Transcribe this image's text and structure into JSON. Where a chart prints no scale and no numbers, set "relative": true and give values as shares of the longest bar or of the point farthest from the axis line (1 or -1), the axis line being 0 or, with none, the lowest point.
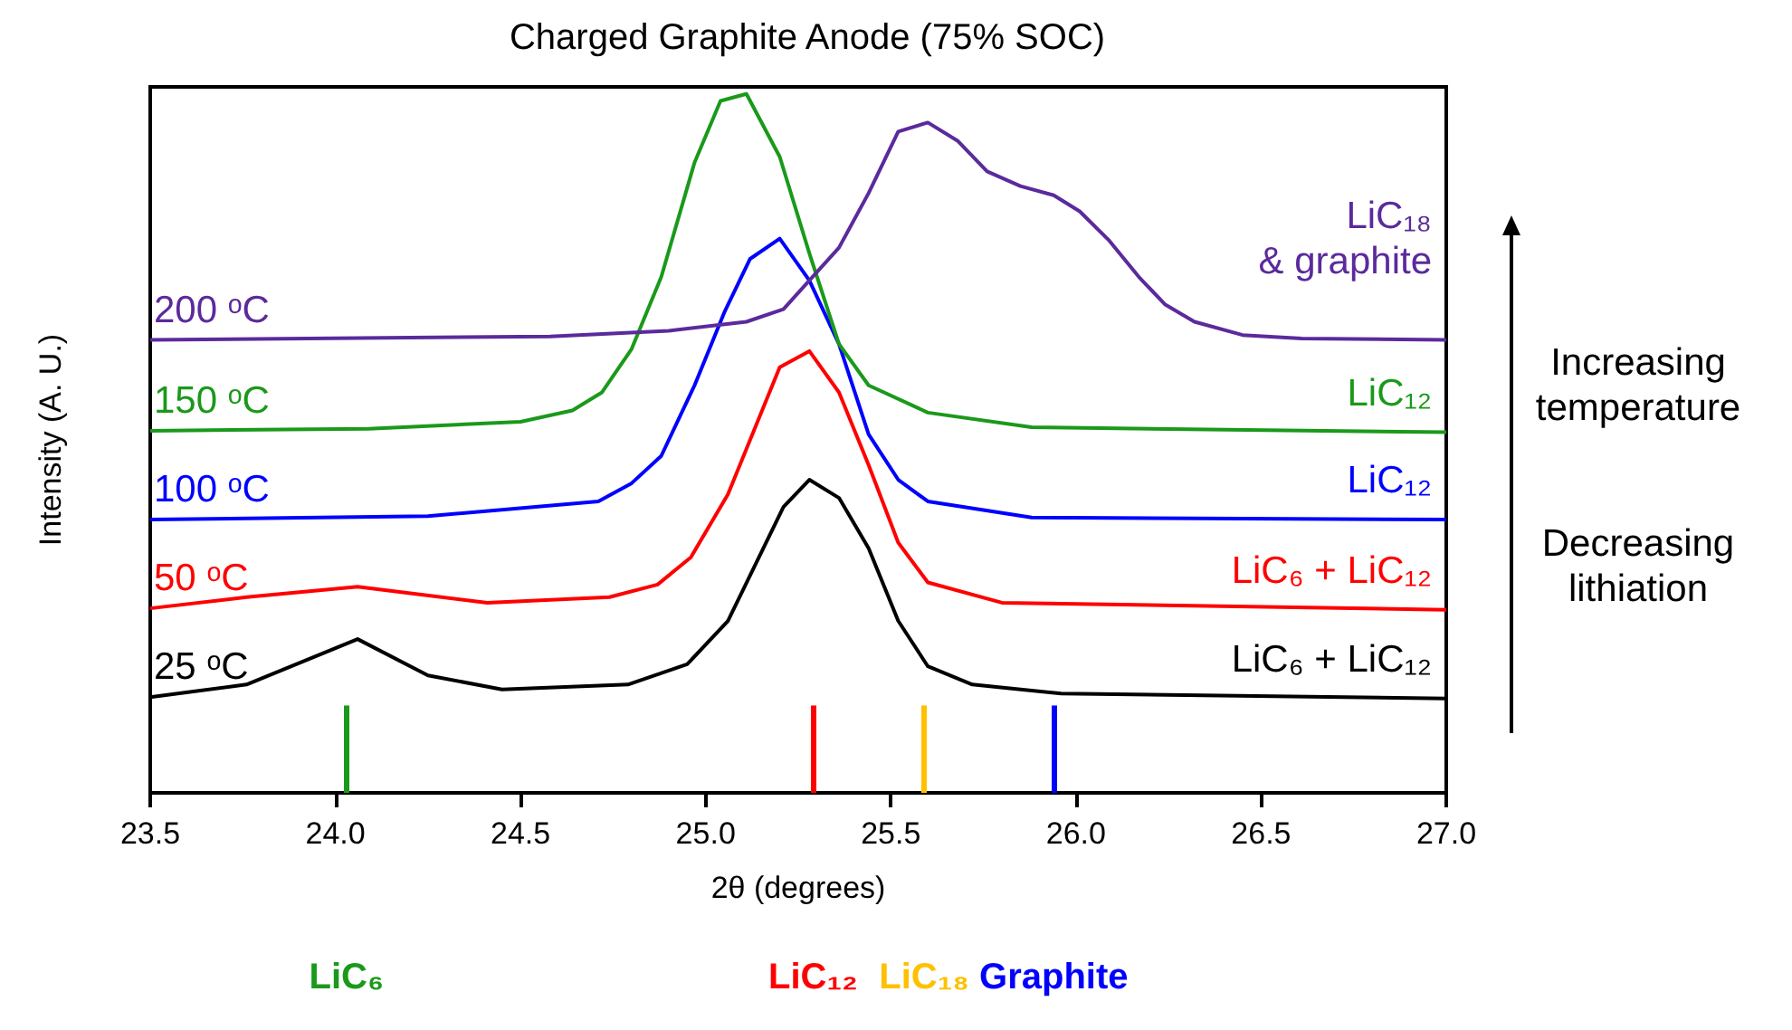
{
  "chart_data": {
    "type": "line",
    "title": "Charged Graphite Anode (75% SOC)",
    "xlabel": "2θ (degrees)",
    "ylabel": "Intensity (A. U.)",
    "relative": true,
    "marker": "none",
    "grid": false,
    "legend": false,
    "xlim": [
      23.5,
      27.0
    ],
    "xticks": [
      23.5,
      {
        "value": 24,
        "label": "24.0"
      },
      24.5,
      {
        "value": 25,
        "label": "25.0"
      },
      25.5,
      {
        "value": 26,
        "label": "26.0"
      },
      26.5,
      {
        "value": 27,
        "label": "27.0"
      }
    ],
    "series": [
      {
        "name": "25 ᵒC",
        "color": "#000000",
        "x": [
          23.5,
          23.76,
          24.06,
          24.25,
          24.45,
          24.79,
          24.95,
          25.06,
          25.21,
          25.28,
          25.36,
          25.44,
          25.52,
          25.6,
          25.72,
          25.96,
          27.0
        ],
        "values": [
          0.137,
          0.155,
          0.22,
          0.168,
          0.148,
          0.155,
          0.184,
          0.246,
          0.409,
          0.448,
          0.422,
          0.35,
          0.246,
          0.181,
          0.155,
          0.142,
          0.135
        ]
      },
      {
        "name": "50 ᵒC",
        "color": "#ff0000",
        "x": [
          23.5,
          23.76,
          24.06,
          24.41,
          24.74,
          24.87,
          24.96,
          25.06,
          25.2,
          25.28,
          25.36,
          25.44,
          25.52,
          25.6,
          25.8,
          27.0
        ],
        "values": [
          0.264,
          0.28,
          0.295,
          0.272,
          0.28,
          0.298,
          0.337,
          0.427,
          0.609,
          0.632,
          0.573,
          0.469,
          0.358,
          0.301,
          0.272,
          0.262
        ]
      },
      {
        "name": "100 ᵒC",
        "color": "#0000ff",
        "x": [
          23.5,
          24.25,
          24.71,
          24.8,
          24.88,
          24.97,
          25.05,
          25.12,
          25.2,
          25.28,
          25.36,
          25.44,
          25.52,
          25.6,
          25.88,
          27.0
        ],
        "values": [
          0.391,
          0.396,
          0.417,
          0.443,
          0.482,
          0.583,
          0.687,
          0.764,
          0.793,
          0.733,
          0.642,
          0.513,
          0.448,
          0.417,
          0.394,
          0.391
        ]
      },
      {
        "name": "150 ᵒC",
        "color": "#1a991a",
        "x": [
          23.5,
          24.09,
          24.5,
          24.64,
          24.72,
          24.8,
          24.88,
          24.97,
          25.04,
          25.11,
          25.2,
          25.28,
          25.36,
          25.44,
          25.6,
          25.88,
          27.0
        ],
        "values": [
          0.518,
          0.521,
          0.531,
          0.547,
          0.573,
          0.635,
          0.738,
          0.902,
          0.99,
          1.0,
          0.91,
          0.772,
          0.642,
          0.583,
          0.544,
          0.523,
          0.516
        ]
      },
      {
        "name": "200 ᵒC",
        "color": "#5b2a9c",
        "x": [
          23.5,
          24.58,
          24.9,
          25.11,
          25.21,
          25.28,
          25.36,
          25.44,
          25.52,
          25.6,
          25.68,
          25.76,
          25.85,
          25.94,
          26.01,
          26.09,
          26.17,
          26.24,
          26.32,
          26.45,
          26.61,
          27.0
        ],
        "values": [
          0.648,
          0.653,
          0.661,
          0.674,
          0.692,
          0.733,
          0.78,
          0.858,
          0.946,
          0.959,
          0.933,
          0.889,
          0.868,
          0.855,
          0.832,
          0.79,
          0.738,
          0.699,
          0.674,
          0.655,
          0.65,
          0.648
        ]
      }
    ],
    "annotations": [
      "LiC₆ + LiC₁₂",
      "LiC₆ + LiC₁₂",
      "LiC₁₂",
      "LiC₁₂",
      "LiC₁₈\n& graphite",
      "Increasing\ntemperature",
      "Decreasing\nlithiation"
    ],
    "ref_lines": [
      {
        "axis": "x",
        "value": 24.03,
        "label": "LiC₆",
        "color": "#1a991a"
      },
      {
        "axis": "x",
        "value": 25.29,
        "label": "LiC₁₂",
        "color": "#ff0000"
      },
      {
        "axis": "x",
        "value": 25.59,
        "label": "LiC₁₈",
        "color": "#ffc000"
      },
      {
        "axis": "x",
        "value": 25.94,
        "label": "Graphite",
        "color": "#0000ff"
      }
    ]
  }
}
